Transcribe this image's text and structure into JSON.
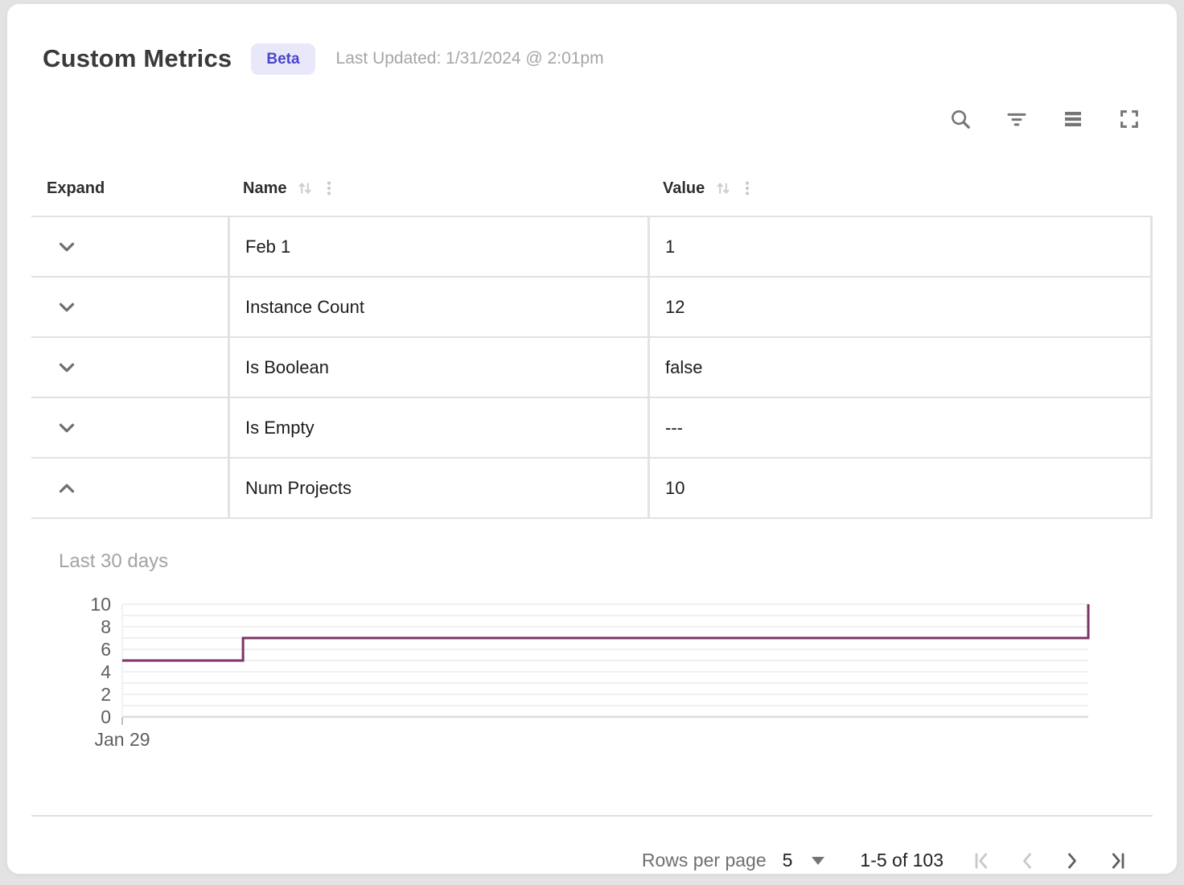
{
  "header": {
    "title": "Custom Metrics",
    "badge": "Beta",
    "last_updated": "Last Updated: 1/31/2024 @ 2:01pm"
  },
  "toolbar": {
    "icons": [
      "search",
      "filter",
      "density",
      "fullscreen"
    ],
    "icon_color": "#757575"
  },
  "table": {
    "columns": [
      {
        "label": "Expand",
        "sortable": false
      },
      {
        "label": "Name",
        "sortable": true
      },
      {
        "label": "Value",
        "sortable": true
      }
    ],
    "rows": [
      {
        "name": "Feb 1",
        "value": "1",
        "expanded": false
      },
      {
        "name": "Instance Count",
        "value": "12",
        "expanded": false
      },
      {
        "name": "Is Boolean",
        "value": "false",
        "expanded": false
      },
      {
        "name": "Is Empty",
        "value": "---",
        "expanded": false
      },
      {
        "name": "Num Projects",
        "value": "10",
        "expanded": true
      }
    ]
  },
  "chart_data": {
    "type": "line",
    "step": true,
    "title": "Last 30 days",
    "x_tick_labels": [
      "Jan 29"
    ],
    "ylim": [
      0,
      10
    ],
    "y_ticks": [
      0,
      2,
      4,
      6,
      8,
      10
    ],
    "grid_interval": 1,
    "grid": true,
    "line_color": "#7b3568",
    "series": [
      {
        "name": "Num Projects",
        "points": [
          {
            "x": 0,
            "y": 5
          },
          {
            "x": 0.125,
            "y": 5
          },
          {
            "x": 0.125,
            "y": 7
          },
          {
            "x": 1,
            "y": 7
          },
          {
            "x": 1,
            "y": 10
          }
        ]
      }
    ]
  },
  "footer": {
    "rows_per_page_label": "Rows per page",
    "rows_per_page_value": "5",
    "range_label": "1-5 of 103",
    "first_enabled": false,
    "prev_enabled": false,
    "next_enabled": true,
    "last_enabled": true
  },
  "colors": {
    "badge_bg": "#e9e8fb",
    "badge_text": "#4946c9",
    "row_border": "#e1e1e1",
    "grid_line": "#f0f0f0",
    "axis_label": "#5f5f5f",
    "chart_line": "#7b3568",
    "disabled_icon": "#c8c8c8",
    "enabled_icon": "#5f5f5f"
  }
}
